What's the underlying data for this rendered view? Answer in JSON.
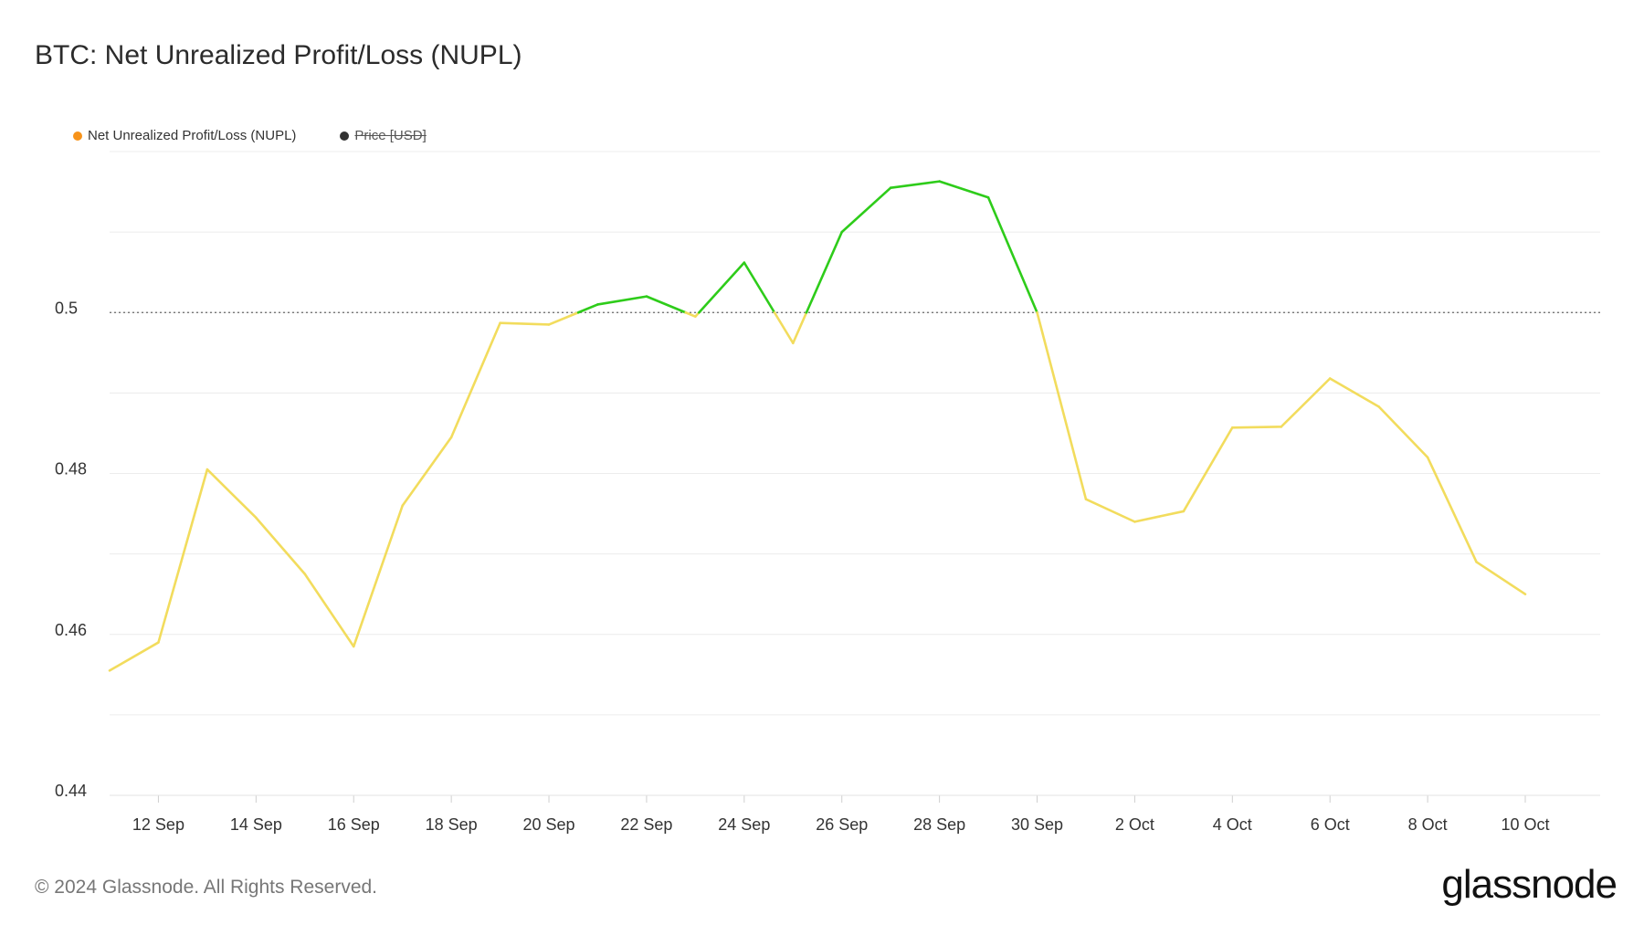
{
  "header": {
    "title": "BTC: Net Unrealized Profit/Loss (NUPL)"
  },
  "legend": [
    {
      "label": "Net Unrealized Profit/Loss (NUPL)",
      "color": "#f7931a",
      "disabled": false
    },
    {
      "label": "Price [USD]",
      "color": "#333333",
      "disabled": true
    }
  ],
  "footer": {
    "copyright": "© 2024 Glassnode. All Rights Reserved.",
    "brand": "glassnode"
  },
  "chart_data": {
    "type": "line",
    "ylim": [
      0.44,
      0.52
    ],
    "threshold": 0.5,
    "colors": {
      "above": "#2ecc1a",
      "below": "#f2dc5d",
      "grid": "#ececec",
      "threshold": "#666666"
    },
    "x_ticks": [
      "12 Sep",
      "14 Sep",
      "16 Sep",
      "18 Sep",
      "20 Sep",
      "22 Sep",
      "24 Sep",
      "26 Sep",
      "28 Sep",
      "30 Sep",
      "2 Oct",
      "4 Oct",
      "6 Oct",
      "8 Oct",
      "10 Oct"
    ],
    "y_ticks": [
      0.44,
      0.46,
      0.48,
      0.5
    ],
    "y_tick_labels": [
      "0.44",
      "0.46",
      "0.48",
      "0.5"
    ],
    "series": [
      {
        "x": [
          "11 Sep",
          "12 Sep",
          "13 Sep",
          "14 Sep",
          "15 Sep",
          "16 Sep",
          "17 Sep",
          "18 Sep",
          "19 Sep",
          "20 Sep",
          "21 Sep",
          "22 Sep",
          "23 Sep",
          "24 Sep",
          "25 Sep",
          "26 Sep",
          "27 Sep",
          "28 Sep",
          "29 Sep",
          "30 Sep",
          "1 Oct",
          "2 Oct",
          "3 Oct",
          "4 Oct",
          "5 Oct",
          "6 Oct",
          "7 Oct",
          "8 Oct",
          "9 Oct",
          "10 Oct"
        ],
        "values": [
          0.4555,
          0.459,
          0.4805,
          0.4745,
          0.4675,
          0.4585,
          0.476,
          0.4845,
          0.4987,
          0.4985,
          0.501,
          0.502,
          0.4995,
          0.5062,
          0.4962,
          0.51,
          0.5155,
          0.5163,
          0.5143,
          0.5,
          0.4768,
          0.474,
          0.4753,
          0.4857,
          0.4858,
          0.4918,
          0.4883,
          0.482,
          0.469,
          0.465
        ]
      }
    ]
  }
}
